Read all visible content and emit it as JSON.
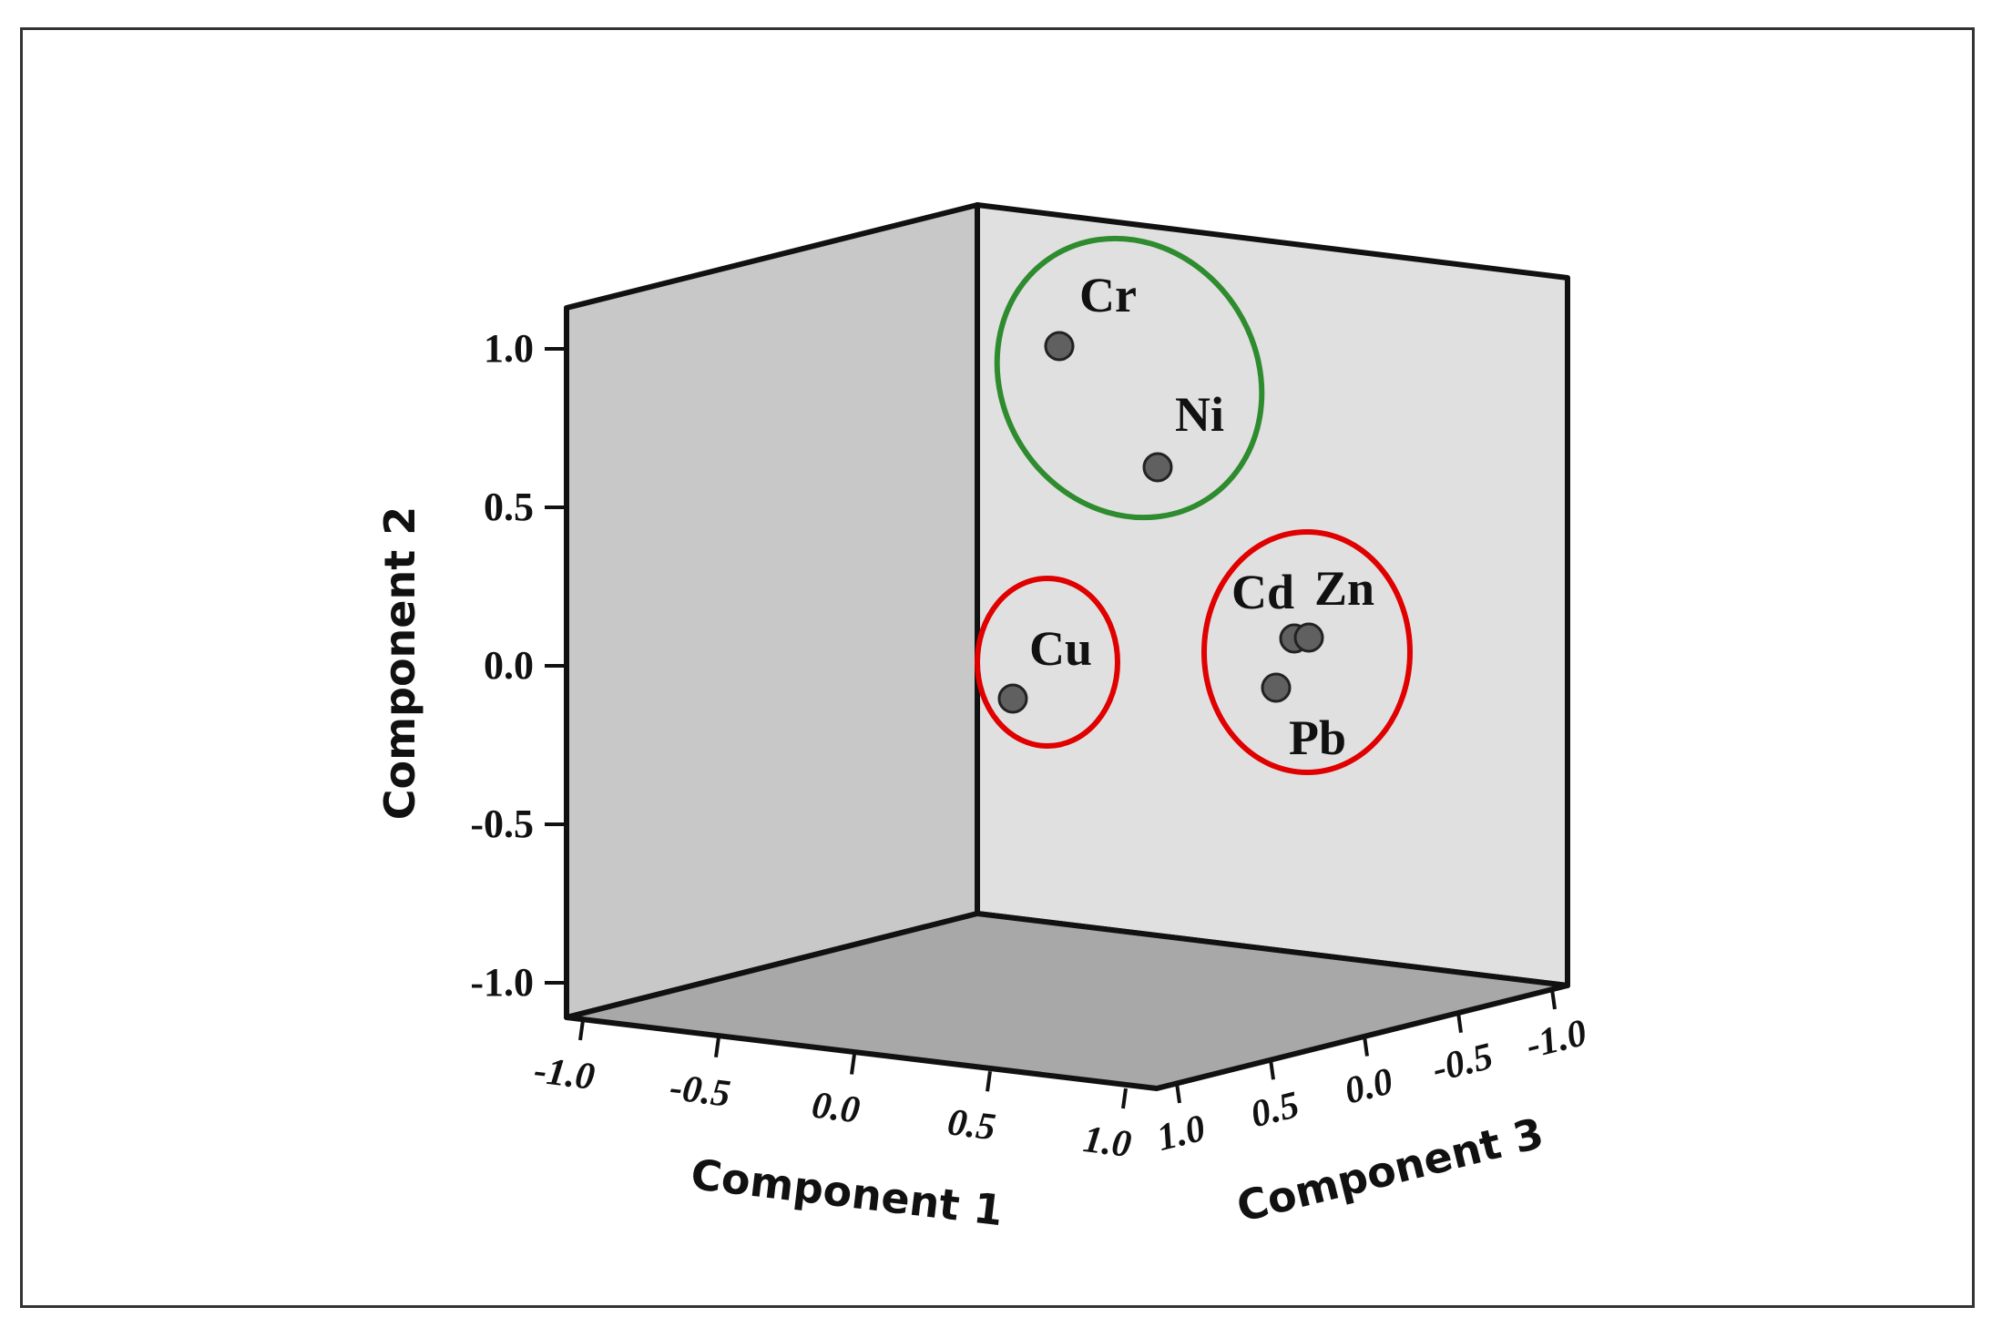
{
  "chart_data": {
    "type": "scatter",
    "projection": "3d",
    "xlabel": "Component 1",
    "ylabel": "Component 2",
    "zlabel": "Component 3",
    "xlim": [
      -1.0,
      1.0
    ],
    "ylim": [
      -1.0,
      1.0
    ],
    "zlim": [
      -1.0,
      1.0
    ],
    "ticks": {
      "x": [
        "-1.0",
        "-0.5",
        "0.0",
        "0.5",
        "1.0"
      ],
      "y": [
        "1.0",
        "0.5",
        "0.0",
        "-0.5",
        "-1.0"
      ],
      "z": [
        "1.0",
        "0.5",
        "0.0",
        "-0.5",
        "-1.0"
      ]
    },
    "points": [
      {
        "label": "Cr",
        "x": -0.3,
        "y": 1.0,
        "z": 0.7
      },
      {
        "label": "Ni",
        "x": 0.0,
        "y": 0.62,
        "z": 0.3
      },
      {
        "label": "Cu",
        "x": -0.4,
        "y": -0.12,
        "z": 0.9
      },
      {
        "label": "Cd",
        "x": 0.45,
        "y": 0.07,
        "z": -0.1
      },
      {
        "label": "Zn",
        "x": 0.48,
        "y": 0.08,
        "z": -0.15
      },
      {
        "label": "Pb",
        "x": 0.4,
        "y": -0.08,
        "z": -0.05
      }
    ],
    "clusters": [
      {
        "members": [
          "Cr",
          "Ni"
        ],
        "color": "#2e8b2e"
      },
      {
        "members": [
          "Cu"
        ],
        "color": "#e00000"
      },
      {
        "members": [
          "Cd",
          "Zn",
          "Pb"
        ],
        "color": "#e00000"
      }
    ],
    "colors": {
      "left_wall": "#c8c8c8",
      "back_wall": "#e0e0e0",
      "floor": "#a8a8a8",
      "marker": "#606060",
      "edge": "#111111"
    },
    "grid": false,
    "legend": "none"
  }
}
